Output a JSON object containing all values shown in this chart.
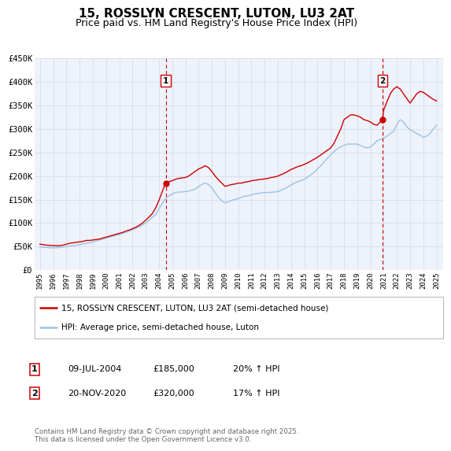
{
  "title": "15, ROSSLYN CRESCENT, LUTON, LU3 2AT",
  "subtitle": "Price paid vs. HM Land Registry's House Price Index (HPI)",
  "title_fontsize": 11,
  "subtitle_fontsize": 9,
  "background_color": "#ffffff",
  "plot_bg_color": "#eef2fa",
  "grid_color": "#d8dde8",
  "ylim": [
    0,
    450000
  ],
  "yticks": [
    0,
    50000,
    100000,
    150000,
    200000,
    250000,
    300000,
    350000,
    400000,
    450000
  ],
  "ytick_labels": [
    "£0",
    "£50K",
    "£100K",
    "£150K",
    "£200K",
    "£250K",
    "£300K",
    "£350K",
    "£400K",
    "£450K"
  ],
  "xlim_start": 1994.6,
  "xlim_end": 2025.5,
  "xticks": [
    1995,
    1996,
    1997,
    1998,
    1999,
    2000,
    2001,
    2002,
    2003,
    2004,
    2005,
    2006,
    2007,
    2008,
    2009,
    2010,
    2011,
    2012,
    2013,
    2014,
    2015,
    2016,
    2017,
    2018,
    2019,
    2020,
    2021,
    2022,
    2023,
    2024,
    2025
  ],
  "red_line_color": "#cc0000",
  "blue_line_color": "#99c4e8",
  "marker1_date": 2004.52,
  "marker1_value": 185000,
  "marker2_date": 2020.9,
  "marker2_value": 320000,
  "vline_color": "#cc0000",
  "legend_label_red": "15, ROSSLYN CRESCENT, LUTON, LU3 2AT (semi-detached house)",
  "legend_label_blue": "HPI: Average price, semi-detached house, Luton",
  "footnote": "Contains HM Land Registry data © Crown copyright and database right 2025.\nThis data is licensed under the Open Government Licence v3.0.",
  "table_rows": [
    {
      "num": "1",
      "date": "09-JUL-2004",
      "price": "£185,000",
      "hpi": "20% ↑ HPI"
    },
    {
      "num": "2",
      "date": "20-NOV-2020",
      "price": "£320,000",
      "hpi": "17% ↑ HPI"
    }
  ],
  "red_series_x": [
    1995.0,
    1995.25,
    1995.5,
    1995.75,
    1996.0,
    1996.25,
    1996.5,
    1996.75,
    1997.0,
    1997.25,
    1997.5,
    1997.75,
    1998.0,
    1998.25,
    1998.5,
    1998.75,
    1999.0,
    1999.25,
    1999.5,
    1999.75,
    2000.0,
    2000.25,
    2000.5,
    2000.75,
    2001.0,
    2001.25,
    2001.5,
    2001.75,
    2002.0,
    2002.25,
    2002.5,
    2002.75,
    2003.0,
    2003.25,
    2003.5,
    2003.75,
    2004.0,
    2004.25,
    2004.52,
    2004.75,
    2005.0,
    2005.25,
    2005.5,
    2005.75,
    2006.0,
    2006.25,
    2006.5,
    2006.75,
    2007.0,
    2007.25,
    2007.5,
    2007.75,
    2008.0,
    2008.25,
    2008.5,
    2008.75,
    2009.0,
    2009.25,
    2009.5,
    2009.75,
    2010.0,
    2010.25,
    2010.5,
    2010.75,
    2011.0,
    2011.25,
    2011.5,
    2011.75,
    2012.0,
    2012.25,
    2012.5,
    2012.75,
    2013.0,
    2013.25,
    2013.5,
    2013.75,
    2014.0,
    2014.25,
    2014.5,
    2014.75,
    2015.0,
    2015.25,
    2015.5,
    2015.75,
    2016.0,
    2016.25,
    2016.5,
    2016.75,
    2017.0,
    2017.25,
    2017.5,
    2017.75,
    2018.0,
    2018.25,
    2018.5,
    2018.75,
    2019.0,
    2019.25,
    2019.5,
    2019.75,
    2020.0,
    2020.25,
    2020.5,
    2020.9,
    2021.0,
    2021.25,
    2021.5,
    2021.75,
    2022.0,
    2022.25,
    2022.5,
    2022.75,
    2023.0,
    2023.25,
    2023.5,
    2023.75,
    2024.0,
    2024.25,
    2024.5,
    2024.75,
    2025.0
  ],
  "red_series_y": [
    55000,
    54000,
    53000,
    52500,
    52000,
    51500,
    52000,
    53000,
    55000,
    57000,
    58000,
    59000,
    60000,
    61000,
    63000,
    63000,
    64000,
    65000,
    66000,
    68000,
    70000,
    72000,
    74000,
    76000,
    78000,
    80000,
    83000,
    85000,
    88000,
    91000,
    95000,
    100000,
    106000,
    113000,
    120000,
    132000,
    148000,
    167000,
    185000,
    188000,
    190000,
    193000,
    195000,
    196000,
    197000,
    200000,
    205000,
    210000,
    215000,
    218000,
    222000,
    218000,
    210000,
    200000,
    192000,
    185000,
    178000,
    180000,
    182000,
    183000,
    185000,
    185000,
    187000,
    188000,
    190000,
    191000,
    192000,
    193000,
    194000,
    195000,
    197000,
    198000,
    200000,
    203000,
    206000,
    210000,
    214000,
    217000,
    220000,
    222000,
    225000,
    228000,
    232000,
    236000,
    240000,
    245000,
    250000,
    255000,
    260000,
    270000,
    285000,
    300000,
    320000,
    325000,
    330000,
    330000,
    328000,
    325000,
    320000,
    318000,
    315000,
    310000,
    308000,
    320000,
    340000,
    358000,
    375000,
    385000,
    390000,
    385000,
    375000,
    365000,
    355000,
    365000,
    375000,
    380000,
    378000,
    373000,
    368000,
    363000,
    360000
  ],
  "blue_series_x": [
    1995.0,
    1995.25,
    1995.5,
    1995.75,
    1996.0,
    1996.25,
    1996.5,
    1996.75,
    1997.0,
    1997.25,
    1997.5,
    1997.75,
    1998.0,
    1998.25,
    1998.5,
    1998.75,
    1999.0,
    1999.25,
    1999.5,
    1999.75,
    2000.0,
    2000.25,
    2000.5,
    2000.75,
    2001.0,
    2001.25,
    2001.5,
    2001.75,
    2002.0,
    2002.25,
    2002.5,
    2002.75,
    2003.0,
    2003.25,
    2003.5,
    2003.75,
    2004.0,
    2004.25,
    2004.5,
    2004.75,
    2005.0,
    2005.25,
    2005.5,
    2005.75,
    2006.0,
    2006.25,
    2006.5,
    2006.75,
    2007.0,
    2007.25,
    2007.5,
    2007.75,
    2008.0,
    2008.25,
    2008.5,
    2008.75,
    2009.0,
    2009.25,
    2009.5,
    2009.75,
    2010.0,
    2010.25,
    2010.5,
    2010.75,
    2011.0,
    2011.25,
    2011.5,
    2011.75,
    2012.0,
    2012.25,
    2012.5,
    2012.75,
    2013.0,
    2013.25,
    2013.5,
    2013.75,
    2014.0,
    2014.25,
    2014.5,
    2014.75,
    2015.0,
    2015.25,
    2015.5,
    2015.75,
    2016.0,
    2016.25,
    2016.5,
    2016.75,
    2017.0,
    2017.25,
    2017.5,
    2017.75,
    2018.0,
    2018.25,
    2018.5,
    2018.75,
    2019.0,
    2019.25,
    2019.5,
    2019.75,
    2020.0,
    2020.25,
    2020.5,
    2020.75,
    2021.0,
    2021.25,
    2021.5,
    2021.75,
    2022.0,
    2022.25,
    2022.5,
    2022.75,
    2023.0,
    2023.25,
    2023.5,
    2023.75,
    2024.0,
    2024.25,
    2024.5,
    2024.75,
    2025.0
  ],
  "blue_series_y": [
    49000,
    48500,
    48000,
    47500,
    47000,
    47500,
    48000,
    49000,
    50000,
    51000,
    52000,
    53000,
    54000,
    55500,
    57000,
    58000,
    60000,
    62000,
    64000,
    66000,
    68000,
    70000,
    72000,
    74000,
    76000,
    78000,
    80000,
    83000,
    86000,
    89000,
    92000,
    96000,
    100000,
    106000,
    112000,
    118000,
    130000,
    142000,
    152000,
    158000,
    162000,
    165000,
    166000,
    166000,
    167000,
    168000,
    170000,
    172000,
    178000,
    182000,
    185000,
    182000,
    175000,
    165000,
    155000,
    147000,
    143000,
    145000,
    148000,
    150000,
    152000,
    155000,
    157000,
    158000,
    160000,
    162000,
    163000,
    164000,
    165000,
    165000,
    165500,
    166000,
    167000,
    170000,
    173000,
    177000,
    181000,
    185000,
    188000,
    190000,
    193000,
    198000,
    203000,
    208000,
    215000,
    222000,
    230000,
    238000,
    245000,
    252000,
    258000,
    262000,
    265000,
    268000,
    268000,
    268000,
    268000,
    265000,
    262000,
    260000,
    262000,
    268000,
    275000,
    278000,
    280000,
    285000,
    290000,
    295000,
    310000,
    320000,
    315000,
    305000,
    298000,
    295000,
    290000,
    287000,
    282000,
    285000,
    290000,
    300000,
    308000
  ]
}
